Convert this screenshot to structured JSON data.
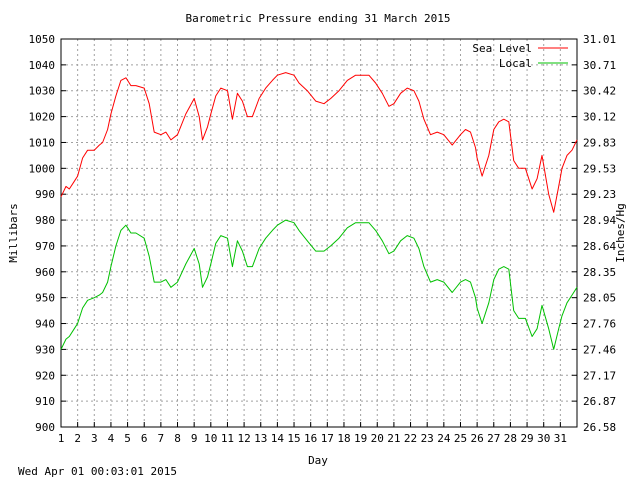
{
  "footer": {
    "timestamp": "Wed Apr 01 00:03:01 2015"
  },
  "chart_data": {
    "type": "line",
    "title": "Barometric Pressure ending 31 March 2015",
    "xlabel": "Day",
    "ylabel": "Millibars",
    "y2label": "Inches/Hg",
    "xlim": [
      1,
      32
    ],
    "ylim": [
      900,
      1050
    ],
    "x_ticks": [
      "1",
      "2",
      "3",
      "4",
      "5",
      "6",
      "7",
      "8",
      "9",
      "10",
      "11",
      "12",
      "13",
      "14",
      "15",
      "16",
      "17",
      "18",
      "19",
      "20",
      "21",
      "22",
      "23",
      "24",
      "25",
      "26",
      "27",
      "28",
      "29",
      "30",
      "31"
    ],
    "y_ticks": [
      "900",
      "910",
      "920",
      "930",
      "940",
      "950",
      "960",
      "970",
      "980",
      "990",
      "1000",
      "1010",
      "1020",
      "1030",
      "1040",
      "1050"
    ],
    "y2_ticks": [
      "26.58",
      "26.87",
      "27.17",
      "27.46",
      "27.76",
      "28.05",
      "28.35",
      "28.64",
      "28.94",
      "29.23",
      "29.53",
      "29.83",
      "30.12",
      "30.42",
      "30.71",
      "31.01"
    ],
    "grid": true,
    "legend_position": "top-right",
    "series": [
      {
        "name": "Sea Level",
        "color": "#ff0000",
        "x": [
          1.0,
          1.3,
          1.5,
          1.8,
          2.0,
          2.3,
          2.6,
          3.0,
          3.3,
          3.5,
          3.8,
          4.0,
          4.3,
          4.6,
          4.9,
          5.0,
          5.2,
          5.5,
          6.0,
          6.3,
          6.6,
          7.0,
          7.3,
          7.6,
          8.0,
          8.5,
          9.0,
          9.3,
          9.5,
          9.8,
          10.0,
          10.3,
          10.6,
          11.0,
          11.3,
          11.6,
          11.9,
          12.2,
          12.5,
          12.9,
          13.3,
          13.7,
          14.0,
          14.5,
          15.0,
          15.3,
          15.8,
          16.3,
          16.8,
          17.2,
          17.7,
          18.2,
          18.7,
          19.0,
          19.5,
          19.9,
          20.3,
          20.7,
          21.0,
          21.4,
          21.8,
          22.2,
          22.5,
          22.8,
          23.2,
          23.6,
          24.0,
          24.5,
          25.0,
          25.3,
          25.6,
          25.9,
          26.0,
          26.3,
          26.7,
          27.0,
          27.3,
          27.6,
          27.9,
          28.2,
          28.5,
          28.9,
          29.3,
          29.6,
          29.9,
          30.3,
          30.6,
          30.9,
          31.1,
          31.4,
          31.7,
          32.0
        ],
        "values": [
          989,
          993,
          992,
          995,
          997,
          1004,
          1007,
          1007,
          1009,
          1010,
          1015,
          1021,
          1028,
          1034,
          1035,
          1034,
          1032,
          1032,
          1031,
          1025,
          1014,
          1013,
          1014,
          1011,
          1013,
          1021,
          1027,
          1020,
          1011,
          1016,
          1021,
          1028,
          1031,
          1030,
          1019,
          1029,
          1026,
          1020,
          1020,
          1027,
          1031,
          1034,
          1036,
          1037,
          1036,
          1033,
          1030,
          1026,
          1025,
          1027,
          1030,
          1034,
          1036,
          1036,
          1036,
          1033,
          1029,
          1024,
          1025,
          1029,
          1031,
          1030,
          1026,
          1019,
          1013,
          1014,
          1013,
          1009,
          1013,
          1015,
          1014,
          1008,
          1004,
          997,
          1005,
          1015,
          1018,
          1019,
          1018,
          1003,
          1000,
          1000,
          992,
          996,
          1005,
          990,
          983,
          993,
          1000,
          1005,
          1007,
          1011
        ]
      },
      {
        "name": "Local",
        "color": "#00c000",
        "x": [
          1.0,
          1.3,
          1.5,
          1.8,
          2.0,
          2.3,
          2.6,
          3.0,
          3.3,
          3.5,
          3.8,
          4.0,
          4.3,
          4.6,
          4.9,
          5.0,
          5.2,
          5.5,
          6.0,
          6.3,
          6.6,
          7.0,
          7.3,
          7.6,
          8.0,
          8.5,
          9.0,
          9.3,
          9.5,
          9.8,
          10.0,
          10.3,
          10.6,
          11.0,
          11.3,
          11.6,
          11.9,
          12.2,
          12.5,
          12.9,
          13.3,
          13.7,
          14.0,
          14.5,
          15.0,
          15.3,
          15.8,
          16.3,
          16.8,
          17.2,
          17.7,
          18.2,
          18.7,
          19.0,
          19.5,
          19.9,
          20.3,
          20.7,
          21.0,
          21.4,
          21.8,
          22.2,
          22.5,
          22.8,
          23.2,
          23.6,
          24.0,
          24.5,
          25.0,
          25.3,
          25.6,
          25.9,
          26.0,
          26.3,
          26.7,
          27.0,
          27.3,
          27.6,
          27.9,
          28.2,
          28.5,
          28.9,
          29.3,
          29.6,
          29.9,
          30.3,
          30.6,
          30.9,
          31.1,
          31.4,
          31.7,
          32.0
        ],
        "values": [
          930,
          934,
          935,
          938,
          940,
          946,
          949,
          950,
          951,
          952,
          956,
          962,
          970,
          976,
          978,
          977,
          975,
          975,
          973,
          966,
          956,
          956,
          957,
          954,
          956,
          963,
          969,
          963,
          954,
          958,
          963,
          971,
          974,
          973,
          962,
          972,
          968,
          962,
          962,
          969,
          973,
          976,
          978,
          980,
          979,
          976,
          972,
          968,
          968,
          970,
          973,
          977,
          979,
          979,
          979,
          976,
          972,
          967,
          968,
          972,
          974,
          973,
          969,
          962,
          956,
          957,
          956,
          952,
          956,
          957,
          956,
          950,
          946,
          940,
          948,
          957,
          961,
          962,
          961,
          945,
          942,
          942,
          935,
          938,
          947,
          938,
          930,
          938,
          943,
          948,
          951,
          954
        ]
      }
    ]
  }
}
